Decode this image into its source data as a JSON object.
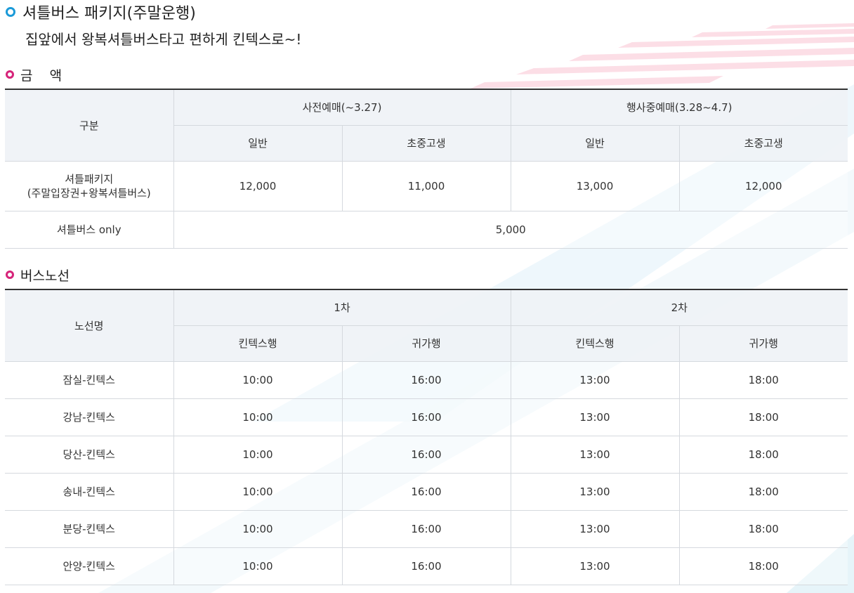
{
  "header": {
    "title": "셔틀버스 패키지(주말운행)",
    "subtitle": "집앞에서 왕복셔틀버스타고 편하게 킨텍스로~!"
  },
  "price_section": {
    "title": "금    액",
    "header_category": "구분",
    "group1": "사전예매(~3.27)",
    "group2": "행사중예매(3.28~4.7)",
    "sub_general": "일반",
    "sub_student": "초중고생",
    "rows": [
      {
        "name_line1": "셔틀패키지",
        "name_line2": "(주말입장권+왕복셔틀버스)",
        "prices": [
          "12,000",
          "11,000",
          "13,000",
          "12,000"
        ]
      }
    ],
    "shuttle_only": {
      "name": "셔틀버스 only",
      "price": "5,000"
    }
  },
  "route_section": {
    "title": "버스노선",
    "header_route": "노선명",
    "group1": "1차",
    "group2": "2차",
    "sub_to": "킨텍스행",
    "sub_return": "귀가행",
    "rows": [
      {
        "route": "잠실-킨텍스",
        "times": [
          "10:00",
          "16:00",
          "13:00",
          "18:00"
        ]
      },
      {
        "route": "강남-킨텍스",
        "times": [
          "10:00",
          "16:00",
          "13:00",
          "18:00"
        ]
      },
      {
        "route": "당산-킨텍스",
        "times": [
          "10:00",
          "16:00",
          "13:00",
          "18:00"
        ]
      },
      {
        "route": "송내-킨텍스",
        "times": [
          "10:00",
          "16:00",
          "13:00",
          "18:00"
        ]
      },
      {
        "route": "분당-킨텍스",
        "times": [
          "10:00",
          "16:00",
          "13:00",
          "18:00"
        ]
      },
      {
        "route": "안양-킨텍스",
        "times": [
          "10:00",
          "16:00",
          "13:00",
          "18:00"
        ]
      }
    ]
  },
  "colors": {
    "title_ring": "#1b9ad8",
    "section_ring": "#d6247a",
    "table_top_border": "#333333",
    "header_bg": "#eef2f6"
  },
  "icons": {
    "title_bullet": "blue-ring-icon",
    "section_bullet": "pink-ring-icon"
  }
}
